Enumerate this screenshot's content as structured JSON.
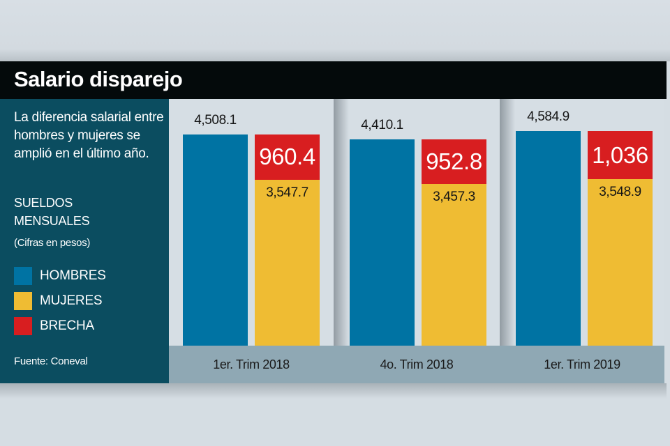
{
  "header": {
    "title": "Salario disparejo"
  },
  "sidebar": {
    "description": "La diferencia salarial entre hombres y mujeres se amplió en el último año.",
    "subtitle_line1": "SUELDOS",
    "subtitle_line2": "MENSUALES",
    "units": "(Cifras en pesos)",
    "source": "Fuente: Coneval"
  },
  "colors": {
    "hombres": "#0073a3",
    "mujeres": "#efbc33",
    "brecha": "#d81e20",
    "panel_bg": "#0b4d60"
  },
  "chart_data": {
    "type": "bar",
    "title": "Salario disparejo",
    "subtitle": "SUELDOS MENSUALES",
    "ylabel": "(Cifras en pesos)",
    "categories": [
      "1er. Trim 2018",
      "4o. Trim 2018",
      "1er. Trim 2019"
    ],
    "legend": [
      {
        "name": "HOMBRES",
        "color": "#0073a3"
      },
      {
        "name": "MUJERES",
        "color": "#efbc33"
      },
      {
        "name": "BRECHA",
        "color": "#d81e20"
      }
    ],
    "legend_position": "left",
    "series": [
      {
        "name": "HOMBRES",
        "values": [
          4508.1,
          4410.1,
          4584.9
        ],
        "labels": [
          "4,508.1",
          "4,410.1",
          "4,584.9"
        ]
      },
      {
        "name": "MUJERES",
        "values": [
          3547.7,
          3457.3,
          3548.9
        ],
        "labels": [
          "3,547.7",
          "3,457.3",
          "3,548.9"
        ]
      },
      {
        "name": "BRECHA",
        "values": [
          960.4,
          952.8,
          1036
        ],
        "labels": [
          "960.4",
          "952.8",
          "1,036"
        ],
        "stacked_on": "MUJERES"
      }
    ],
    "ylim": [
      0,
      4600
    ],
    "grid": false,
    "source": "Fuente: Coneval"
  }
}
